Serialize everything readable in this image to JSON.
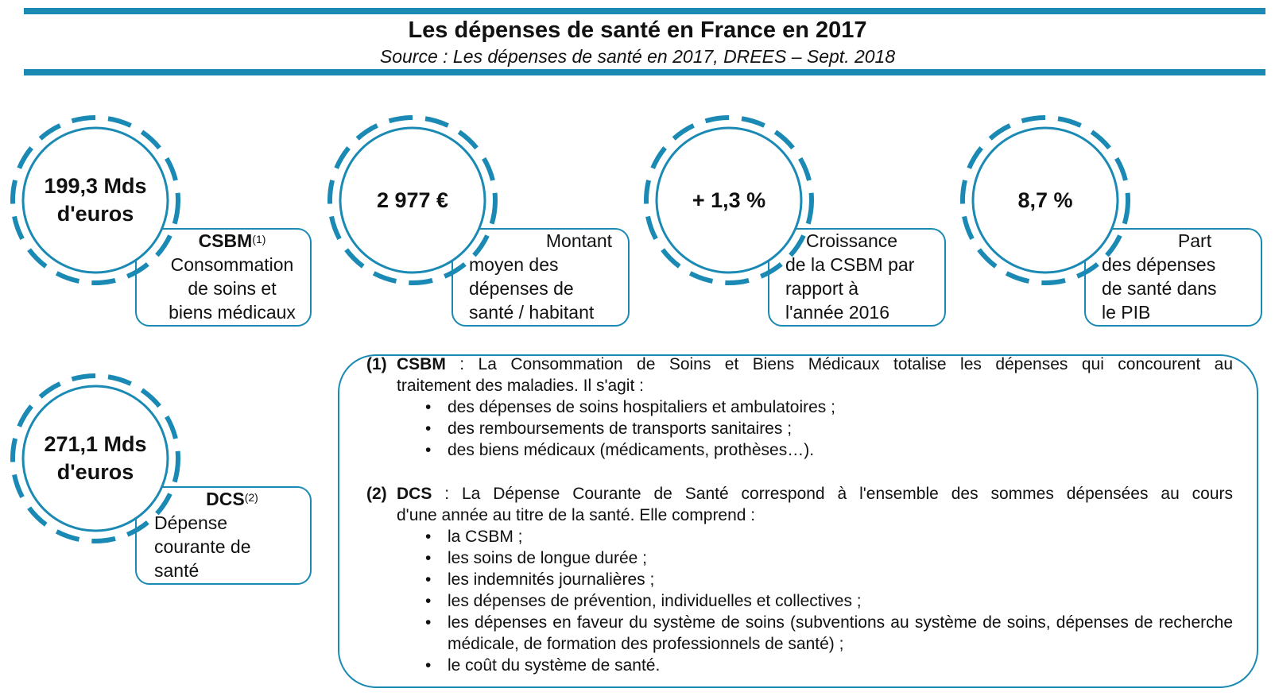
{
  "header": {
    "title": "Les dépenses de santé en France en 2017",
    "subtitle": "Source : Les dépenses de santé en 2017, DREES – Sept. 2018"
  },
  "colors": {
    "accent": "#1a8ab4",
    "text": "#111111",
    "background": "#ffffff"
  },
  "indicators": [
    {
      "value_line1": "199,3 Mds",
      "value_line2": "d'euros",
      "acronym": "CSBM",
      "ref": "(1)",
      "lines": [
        "Consommation",
        "de soins et",
        "biens médicaux"
      ]
    },
    {
      "value_line1": "2 977 €",
      "value_line2": "",
      "acronym": "",
      "ref": "",
      "lines": [
        "Montant",
        "moyen des",
        "dépenses de",
        "santé / habitant"
      ]
    },
    {
      "value_line1": "+ 1,3 %",
      "value_line2": "",
      "acronym": "",
      "ref": "",
      "lines": [
        "Croissance",
        "de la CSBM par",
        "rapport à",
        "l'année 2016"
      ]
    },
    {
      "value_line1": "8,7 %",
      "value_line2": "",
      "acronym": "",
      "ref": "",
      "lines": [
        "Part",
        "des dépenses",
        "de santé dans",
        "le PIB"
      ]
    },
    {
      "value_line1": "271,1 Mds",
      "value_line2": "d'euros",
      "acronym": "DCS",
      "ref": "(2)",
      "lines": [
        "Dépense",
        "courante de",
        "santé"
      ]
    }
  ],
  "notes": {
    "csbm": {
      "number": "(1)",
      "term": "CSBM",
      "line1": " : La Consommation de Soins et Biens Médicaux totalise les dépenses qui concourent au",
      "line2": "traitement des maladies. Il s'agit :",
      "items": [
        "des dépenses de soins hospitaliers et ambulatoires ;",
        "des remboursements de transports sanitaires ;",
        "des biens médicaux (médicaments, prothèses…)."
      ]
    },
    "dcs": {
      "number": "(2)",
      "term": "DCS",
      "line1": " : La Dépense Courante de Santé correspond à l'ensemble des sommes dépensées au cours",
      "line2": "d'une année au titre de la santé. Elle comprend :",
      "items": [
        "la CSBM ;",
        "les soins de longue durée ;",
        "les indemnités journalières ;",
        "les dépenses de prévention, individuelles et collectives ;",
        "les dépenses en faveur du système de soins (subventions au système de soins, dépenses de recherche médicale, de formation des professionnels de santé) ;",
        "le coût du système de santé."
      ]
    }
  }
}
